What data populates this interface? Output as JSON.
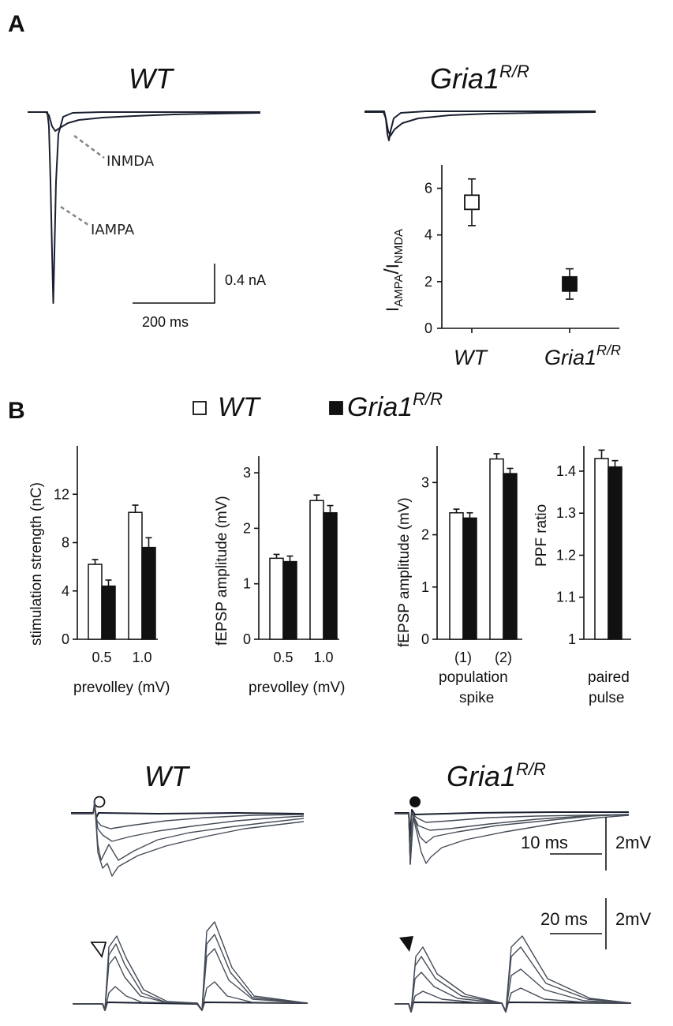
{
  "panelA": {
    "letter": "A",
    "wt_title": "WT",
    "ko_title_main": "Gria1",
    "ko_title_sup": "R/R",
    "inmda_label_I": "I",
    "inmda_label_sub": "NMDA",
    "iampa_label_I": "I",
    "iampa_label_sub": "AMPA",
    "scale_amp": "0.4 nA",
    "scale_time": "200 ms"
  },
  "panelB": {
    "letter": "B",
    "legend_wt": "WT",
    "legend_ko_main": "Gria1",
    "legend_ko_sup": "R/R",
    "xlabel_prevolley_1": "prevolley (mV)",
    "xlabel_prevolley_2": "prevolley (mV)",
    "xlabel_pop_1": "population",
    "xlabel_pop_2": "spike",
    "xlabel_pp_1": "paired",
    "xlabel_pp_2": "pulse"
  },
  "traces": {
    "wt_title": "WT",
    "ko_title_main": "Gria1",
    "ko_title_sup": "R/R",
    "scale1_time": "10 ms",
    "scale1_amp": "2mV",
    "scale2_time": "20 ms",
    "scale2_amp": "2mV"
  },
  "chart_data": [
    {
      "type": "scatter",
      "id": "ampa-nmda-ratio",
      "ylabel_main": "I",
      "ylabel_sub1": "AMPA",
      "ylabel_sub2": "NMDA",
      "categories": [
        "WT",
        "Gria1R/R"
      ],
      "category_labels": [
        {
          "main": "WT",
          "sup": ""
        },
        {
          "main": "Gria1",
          "sup": "R/R"
        }
      ],
      "values": [
        5.4,
        1.9
      ],
      "errors": [
        1.0,
        0.65
      ],
      "fills": [
        "#ffffff",
        "#111111"
      ],
      "ylim": [
        0,
        7
      ],
      "yticks": [
        0,
        2,
        4,
        6
      ]
    },
    {
      "type": "bar",
      "id": "stimulation-strength",
      "ylabel": "stimulation strength (nC)",
      "xlabel": "prevolley (mV)",
      "categories": [
        "0.5",
        "1.0"
      ],
      "series": [
        {
          "name": "WT",
          "values": [
            6.2,
            10.5
          ],
          "errors": [
            0.4,
            0.6
          ]
        },
        {
          "name": "Gria1R/R",
          "values": [
            4.4,
            7.6
          ],
          "errors": [
            0.5,
            0.8
          ]
        }
      ],
      "ylim": [
        0,
        16
      ],
      "yticks": [
        0,
        4,
        8,
        12
      ]
    },
    {
      "type": "bar",
      "id": "fepsp-amplitude-prevolley",
      "ylabel": "fEPSP amplitude (mV)",
      "xlabel": "prevolley (mV)",
      "categories": [
        "0.5",
        "1.0"
      ],
      "series": [
        {
          "name": "WT",
          "values": [
            1.46,
            2.5
          ],
          "errors": [
            0.07,
            0.1
          ]
        },
        {
          "name": "Gria1R/R",
          "values": [
            1.4,
            2.28
          ],
          "errors": [
            0.1,
            0.13
          ]
        }
      ],
      "ylim": [
        0,
        3.3
      ],
      "yticks": [
        0,
        1,
        2,
        3
      ]
    },
    {
      "type": "bar",
      "id": "fepsp-amplitude-popspike",
      "ylabel": "fEPSP amplitude (mV)",
      "xlabel": "population spike",
      "categories": [
        "(1)",
        "(2)"
      ],
      "series": [
        {
          "name": "WT",
          "values": [
            2.42,
            3.45
          ],
          "errors": [
            0.07,
            0.1
          ]
        },
        {
          "name": "Gria1R/R",
          "values": [
            2.32,
            3.17
          ],
          "errors": [
            0.1,
            0.1
          ]
        }
      ],
      "ylim": [
        0,
        3.7
      ],
      "yticks": [
        0,
        1,
        2,
        3
      ]
    },
    {
      "type": "bar",
      "id": "ppf-ratio",
      "ylabel": "PPF ratio",
      "xlabel": "paired pulse",
      "categories": [
        ""
      ],
      "series": [
        {
          "name": "WT",
          "values": [
            1.43
          ],
          "errors": [
            0.02
          ]
        },
        {
          "name": "Gria1R/R",
          "values": [
            1.41
          ],
          "errors": [
            0.015
          ]
        }
      ],
      "ylim": [
        1.0,
        1.46
      ],
      "yticks": [
        1,
        1.1,
        1.2,
        1.3,
        1.4
      ],
      "ytick_labels": [
        "1",
        "1.1",
        "1.2",
        "1.3",
        "1.4"
      ]
    }
  ]
}
